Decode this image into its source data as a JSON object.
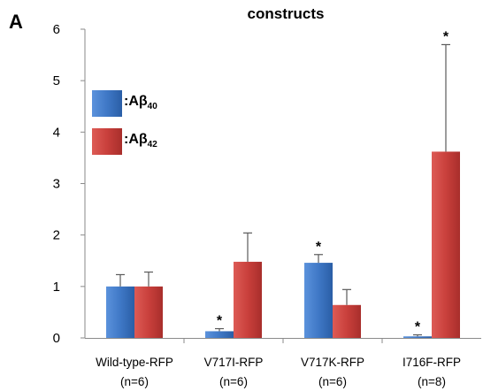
{
  "panel_label": "A",
  "chart_data": {
    "type": "bar",
    "title": "constructs",
    "categories": [
      "Wild-type-RFP",
      "V717I-RFP",
      "V717K-RFP",
      "I716F-RFP"
    ],
    "category_n": [
      "(n=6)",
      "(n=6)",
      "(n=6)",
      "(n=8)"
    ],
    "ylim": [
      0,
      6
    ],
    "yticks": [
      0,
      1,
      2,
      3,
      4,
      5,
      6
    ],
    "xlabel": "",
    "ylabel": "",
    "grid": false,
    "legend_position": "upper-left",
    "series": [
      {
        "name": ":Aβ40",
        "legend_main": ":Aβ",
        "legend_sub": "40",
        "color": "#3f78c6",
        "values": [
          1.0,
          0.13,
          1.46,
          0.03
        ],
        "errors": [
          0.23,
          0.05,
          0.16,
          0.03
        ],
        "significance": [
          "",
          "*",
          "*",
          "*"
        ]
      },
      {
        "name": ":Aβ42",
        "legend_main": ":Aβ",
        "legend_sub": "42",
        "color": "#c9403c",
        "values": [
          1.0,
          1.48,
          0.64,
          3.62
        ],
        "errors": [
          0.28,
          0.56,
          0.3,
          2.08
        ],
        "significance": [
          "",
          "",
          "",
          "*"
        ]
      }
    ]
  }
}
